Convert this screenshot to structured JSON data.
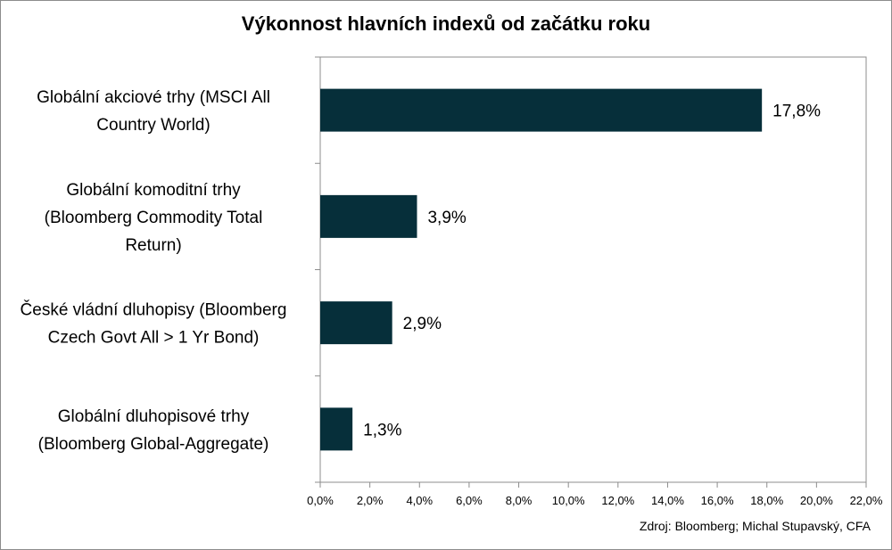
{
  "chart_data": {
    "type": "bar",
    "orientation": "horizontal",
    "title": "Výkonnost hlavních indexů od začátku roku",
    "categories": [
      "Globální akciové trhy (MSCI All Country World)",
      "Globální komoditní trhy (Bloomberg Commodity Total Return)",
      "České vládní dluhopisy (Bloomberg Czech Govt All > 1 Yr Bond)",
      "Globální dluhopisové trhy (Bloomberg Global-Aggregate)"
    ],
    "category_lines": [
      [
        "Globální akciové trhy (MSCI All",
        "Country World)"
      ],
      [
        "Globální komoditní trhy",
        "(Bloomberg Commodity Total",
        "Return)"
      ],
      [
        "České vládní dluhopisy (Bloomberg",
        "Czech Govt All > 1 Yr Bond)"
      ],
      [
        "Globální dluhopisové trhy",
        "(Bloomberg Global-Aggregate)"
      ]
    ],
    "values": [
      17.8,
      3.9,
      2.9,
      1.3
    ],
    "value_labels": [
      "17,8%",
      "3,9%",
      "2,9%",
      "1,3%"
    ],
    "xlim": [
      0,
      22
    ],
    "x_ticks": [
      0,
      2,
      4,
      6,
      8,
      10,
      12,
      14,
      16,
      18,
      20,
      22
    ],
    "x_tick_labels": [
      "0,0%",
      "2,0%",
      "4,0%",
      "6,0%",
      "8,0%",
      "10,0%",
      "12,0%",
      "14,0%",
      "16,0%",
      "18,0%",
      "20,0%",
      "22,0%"
    ],
    "bar_color": "#062f3a",
    "grid": false,
    "legend": "none",
    "xlabel": "",
    "ylabel": ""
  },
  "source": "Zdroj: Bloomberg; Michal Stupavský, CFA"
}
